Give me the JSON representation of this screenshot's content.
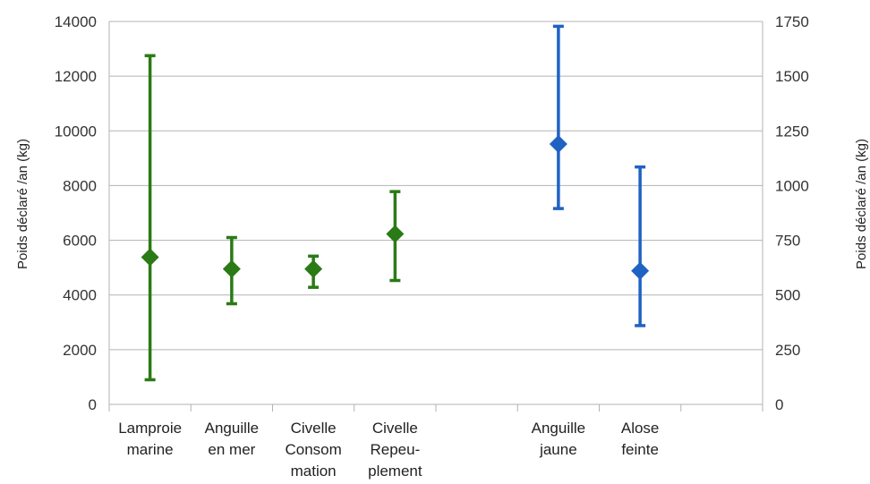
{
  "chart_data": {
    "type": "scatter",
    "ylabel_left": "Poids déclaré /an (kg)",
    "ylabel_right": "Poids déclaré /an (kg)",
    "ylim_left": [
      0,
      14000
    ],
    "ylim_right": [
      0,
      1750
    ],
    "y_ticks_left": [
      "0",
      "2000",
      "4000",
      "6000",
      "8000",
      "10000",
      "12000",
      "14000"
    ],
    "y_ticks_right": [
      "0",
      "250",
      "500",
      "750",
      "1000",
      "1250",
      "1500",
      "1750"
    ],
    "grid": true,
    "categories": [
      {
        "label": [
          "Lamproie",
          "marine"
        ],
        "slot": 1
      },
      {
        "label": [
          "Anguille",
          "en mer"
        ],
        "slot": 2
      },
      {
        "label": [
          "Civelle",
          "Consom",
          "mation"
        ],
        "slot": 3
      },
      {
        "label": [
          "Civelle",
          "Repeu-",
          "plement"
        ],
        "slot": 4
      },
      {
        "label": [
          "Anguille",
          "jaune"
        ],
        "slot": 6
      },
      {
        "label": [
          "Alose",
          "feinte"
        ],
        "slot": 7
      }
    ],
    "series": [
      {
        "axis": "left",
        "color": "#2a7a16",
        "points": [
          {
            "slot": 1,
            "value": 5380,
            "low": 900,
            "high": 12750
          },
          {
            "slot": 2,
            "value": 4950,
            "low": 3680,
            "high": 6100
          },
          {
            "slot": 3,
            "value": 4950,
            "low": 4280,
            "high": 5420
          },
          {
            "slot": 4,
            "value": 6230,
            "low": 4530,
            "high": 7780
          }
        ]
      },
      {
        "axis": "right",
        "color": "#1f62c4",
        "points": [
          {
            "slot": 6,
            "value": 1190,
            "low": 895,
            "high": 1728
          },
          {
            "slot": 7,
            "value": 610,
            "low": 360,
            "high": 1085
          }
        ]
      }
    ]
  }
}
